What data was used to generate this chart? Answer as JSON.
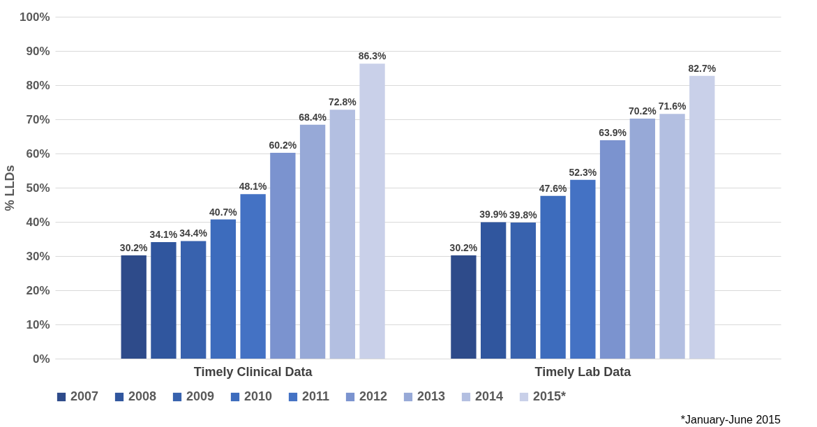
{
  "chart_data": {
    "type": "bar",
    "ylabel": "% LLDs",
    "categories": [
      "Timely Clinical Data",
      "Timely Lab Data"
    ],
    "series": [
      {
        "name": "2007",
        "color": "#2e4b8a",
        "values": [
          30.2,
          30.2
        ],
        "value_labels": [
          "30.2%",
          "30.2%"
        ]
      },
      {
        "name": "2008",
        "color": "#30569e",
        "values": [
          34.1,
          39.9
        ],
        "value_labels": [
          "34.1%",
          "39.9%"
        ]
      },
      {
        "name": "2009",
        "color": "#3862ae",
        "values": [
          34.4,
          39.8
        ],
        "value_labels": [
          "34.4%",
          "39.8%"
        ]
      },
      {
        "name": "2010",
        "color": "#3d6cbd",
        "values": [
          40.7,
          47.6
        ],
        "value_labels": [
          "40.7%",
          "47.6%"
        ]
      },
      {
        "name": "2011",
        "color": "#4472c4",
        "values": [
          48.1,
          52.3
        ],
        "value_labels": [
          "48.1%",
          "52.3%"
        ]
      },
      {
        "name": "2012",
        "color": "#7b93cf",
        "values": [
          60.2,
          63.9
        ],
        "value_labels": [
          "60.2%",
          "63.9%"
        ]
      },
      {
        "name": "2013",
        "color": "#97a9d7",
        "values": [
          68.4,
          70.2
        ],
        "value_labels": [
          "68.4%",
          "70.2%"
        ]
      },
      {
        "name": "2014",
        "color": "#b3bfe1",
        "values": [
          72.8,
          71.6
        ],
        "value_labels": [
          "72.8%",
          "71.6%"
        ]
      },
      {
        "name": "2015*",
        "color": "#c9d0e9",
        "values": [
          86.3,
          82.7
        ],
        "value_labels": [
          "86.3%",
          "82.7%"
        ]
      }
    ],
    "ylim": [
      0,
      100
    ],
    "yticks": [
      {
        "value": 0,
        "label": "0%"
      },
      {
        "value": 10,
        "label": "10%"
      },
      {
        "value": 20,
        "label": "20%"
      },
      {
        "value": 30,
        "label": "30%"
      },
      {
        "value": 40,
        "label": "40%"
      },
      {
        "value": 50,
        "label": "50%"
      },
      {
        "value": 60,
        "label": "60%"
      },
      {
        "value": 70,
        "label": "70%"
      },
      {
        "value": 80,
        "label": "80%"
      },
      {
        "value": 90,
        "label": "90%"
      },
      {
        "value": 100,
        "label": "100%"
      }
    ],
    "grid": "y",
    "legend": "bottom",
    "annotations": [
      "*January-June 2015"
    ]
  }
}
